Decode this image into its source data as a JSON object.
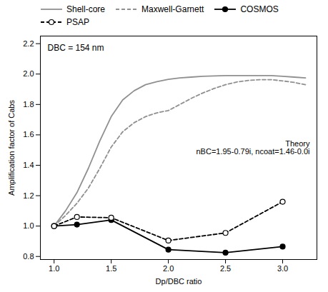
{
  "chart_data": {
    "type": "line",
    "xlabel": "Dp/DBC ratio",
    "ylabel": "Amplification factor of Cabs",
    "xlim": [
      0.88,
      3.3
    ],
    "ylim": [
      0.78,
      2.25
    ],
    "xticks": [
      {
        "value": 1.0,
        "label": "1.0"
      },
      1.5,
      {
        "value": 2.0,
        "label": "2.0"
      },
      2.5,
      {
        "value": 3.0,
        "label": "3.0"
      }
    ],
    "yticks": [
      0.8,
      {
        "value": 1.0,
        "label": "1.0"
      },
      1.2,
      1.4,
      1.6,
      1.8,
      {
        "value": 2.0,
        "label": "2.0"
      },
      2.2
    ],
    "grid": false,
    "legend": "top",
    "annotations": [
      "DBC = 154 nm",
      "Theory",
      "nBC=1.95-0.79i, ncoat=1.46-0.0i"
    ],
    "series": [
      {
        "name": "Shell-core",
        "color": "#909090",
        "line_style": "solid",
        "marker": "none",
        "x": [
          1.0,
          1.1,
          1.2,
          1.3,
          1.4,
          1.5,
          1.6,
          1.7,
          1.8,
          1.9,
          2.0,
          2.1,
          2.2,
          2.3,
          2.4,
          2.5,
          2.6,
          2.7,
          2.8,
          2.9,
          3.0,
          3.1,
          3.2
        ],
        "values": [
          1.0,
          1.1,
          1.22,
          1.38,
          1.56,
          1.72,
          1.83,
          1.89,
          1.93,
          1.95,
          1.965,
          1.975,
          1.98,
          1.985,
          1.988,
          1.99,
          1.99,
          1.99,
          1.99,
          1.99,
          1.985,
          1.98,
          1.975
        ]
      },
      {
        "name": "Maxwell-Garnett",
        "color": "#909090",
        "line_style": "dashed",
        "marker": "none",
        "x": [
          1.0,
          1.1,
          1.2,
          1.3,
          1.4,
          1.5,
          1.6,
          1.7,
          1.8,
          1.9,
          2.0,
          2.1,
          2.2,
          2.3,
          2.4,
          2.5,
          2.6,
          2.7,
          2.8,
          2.9,
          3.0,
          3.1,
          3.2
        ],
        "values": [
          1.0,
          1.07,
          1.15,
          1.25,
          1.38,
          1.52,
          1.62,
          1.68,
          1.72,
          1.745,
          1.76,
          1.8,
          1.84,
          1.875,
          1.905,
          1.93,
          1.948,
          1.958,
          1.963,
          1.963,
          1.955,
          1.945,
          1.93
        ]
      },
      {
        "name": "COSMOS",
        "color": "#000000",
        "line_style": "solid",
        "marker": "filled circle",
        "x": [
          1.0,
          1.2,
          1.5,
          2.0,
          2.5,
          3.0
        ],
        "values": [
          1.0,
          1.01,
          1.04,
          0.845,
          0.825,
          0.865
        ]
      },
      {
        "name": "PSAP",
        "color": "#000000",
        "line_style": "dashed",
        "marker": "open circle",
        "x": [
          1.0,
          1.2,
          1.5,
          2.0,
          2.5,
          3.0
        ],
        "values": [
          1.0,
          1.06,
          1.055,
          0.905,
          0.955,
          1.16
        ]
      }
    ]
  }
}
